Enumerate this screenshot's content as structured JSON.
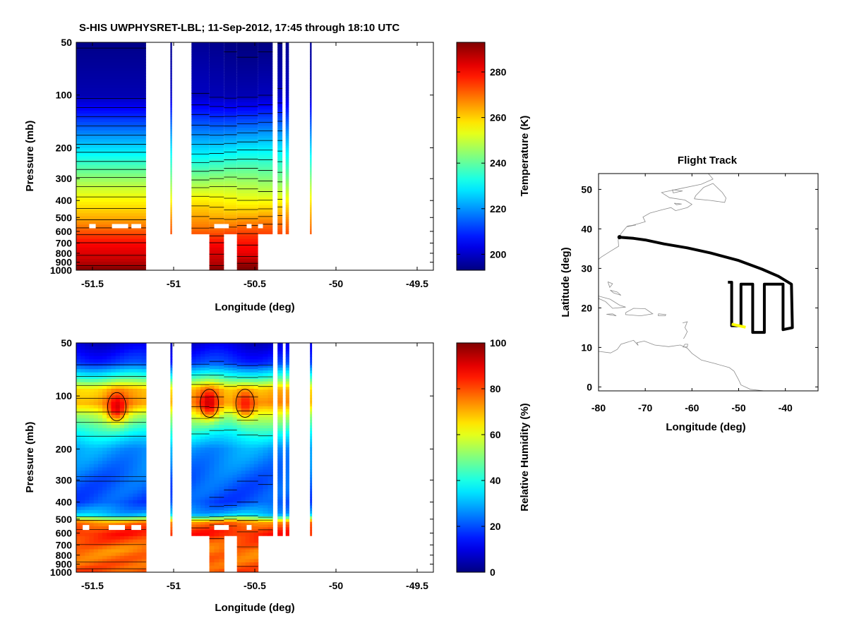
{
  "figure_title": "S-HIS UWPHYSRET-LBL;   11-Sep-2012, 17:45 through 18:10 UTC",
  "colors": {
    "colormap": "jet",
    "contour": "#000000",
    "track": "#000000",
    "track_current": "#ffff00",
    "coastline": "#8c8c8c"
  },
  "chart_data": [
    {
      "id": "temperature",
      "type": "heatmap",
      "xlabel": "Longitude (deg)",
      "ylabel": "Pressure (mb)",
      "xlim": [
        -51.6,
        -49.4
      ],
      "xticks": [
        -51.5,
        -51,
        -50.5,
        -50,
        -49.5
      ],
      "xtick_labels": [
        "-51.5",
        "-51",
        "-50.5",
        "-50",
        "-49.5"
      ],
      "ylim": [
        50,
        1000
      ],
      "yscale": "log",
      "yticks": [
        50,
        100,
        200,
        300,
        400,
        500,
        600,
        700,
        800,
        900,
        1000
      ],
      "ytick_labels": [
        "50",
        "100",
        "200",
        "300",
        "400",
        "500",
        "600",
        "700",
        "800",
        "900",
        "1000"
      ],
      "colorbar_label": "Temperature (K)",
      "clim": [
        193,
        293
      ],
      "colorbar_ticks": [
        200,
        220,
        240,
        260,
        280
      ],
      "colorbar_tick_labels": [
        "200",
        "220",
        "240",
        "260",
        "280"
      ],
      "surface_temperature": 293,
      "tropopause_temperature": 199,
      "upper_temperature": 194,
      "contour_interval": 5,
      "cloud_top_pressure": 560,
      "data_columns": [
        {
          "lon_start": -51.6,
          "lon_end": -51.17,
          "bottom_p": 1000
        },
        {
          "lon_start": -51.02,
          "lon_end": -51.01,
          "bottom_p": 620
        },
        {
          "lon_start": -50.89,
          "lon_end": -50.78,
          "bottom_p": 620
        },
        {
          "lon_start": -50.78,
          "lon_end": -50.69,
          "bottom_p": 1000
        },
        {
          "lon_start": -50.69,
          "lon_end": -50.61,
          "bottom_p": 620
        },
        {
          "lon_start": -50.61,
          "lon_end": -50.48,
          "bottom_p": 1000
        },
        {
          "lon_start": -50.48,
          "lon_end": -50.39,
          "bottom_p": 620
        },
        {
          "lon_start": -50.36,
          "lon_end": -50.33,
          "bottom_p": 620
        },
        {
          "lon_start": -50.31,
          "lon_end": -50.29,
          "bottom_p": 620
        },
        {
          "lon_start": -50.16,
          "lon_end": -50.15,
          "bottom_p": 620
        }
      ]
    },
    {
      "id": "humidity",
      "type": "heatmap",
      "xlabel": "Longitude (deg)",
      "ylabel": "Pressure (mb)",
      "xlim": [
        -51.6,
        -49.4
      ],
      "xticks": [
        -51.5,
        -51,
        -50.5,
        -50,
        -49.5
      ],
      "xtick_labels": [
        "-51.5",
        "-51",
        "-50.5",
        "-50",
        "-49.5"
      ],
      "ylim": [
        50,
        1000
      ],
      "yscale": "log",
      "yticks": [
        50,
        100,
        200,
        300,
        400,
        500,
        600,
        700,
        800,
        900,
        1000
      ],
      "ytick_labels": [
        "50",
        "100",
        "200",
        "300",
        "400",
        "500",
        "600",
        "700",
        "800",
        "900",
        "1000"
      ],
      "colorbar_label": "Relative Humidity (%)",
      "clim": [
        0,
        100
      ],
      "colorbar_ticks": [
        0,
        20,
        40,
        60,
        80,
        100
      ],
      "colorbar_tick_labels": [
        "0",
        "20",
        "40",
        "60",
        "80",
        "100"
      ],
      "profile": [
        {
          "p": 50,
          "rh": 8
        },
        {
          "p": 65,
          "rh": 18
        },
        {
          "p": 80,
          "rh": 45
        },
        {
          "p": 92,
          "rh": 68
        },
        {
          "p": 110,
          "rh": 72
        },
        {
          "p": 130,
          "rh": 55
        },
        {
          "p": 160,
          "rh": 40
        },
        {
          "p": 200,
          "rh": 28
        },
        {
          "p": 300,
          "rh": 22
        },
        {
          "p": 400,
          "rh": 20
        },
        {
          "p": 470,
          "rh": 30
        },
        {
          "p": 520,
          "rh": 75
        },
        {
          "p": 600,
          "rh": 85
        },
        {
          "p": 750,
          "rh": 75
        },
        {
          "p": 900,
          "rh": 78
        },
        {
          "p": 1000,
          "rh": 80
        }
      ],
      "moist_peaks": [
        {
          "lon": -51.35,
          "p": 115,
          "rh": 88
        },
        {
          "lon": -50.78,
          "p": 110,
          "rh": 90
        },
        {
          "lon": -50.56,
          "p": 110,
          "rh": 88
        }
      ],
      "contour_levels": [
        20,
        40,
        60,
        80
      ]
    },
    {
      "id": "flight_track",
      "type": "scatter",
      "title": "Flight Track",
      "xlabel": "Longitude (deg)",
      "ylabel": "Latitude (deg)",
      "xlim": [
        -80,
        -33
      ],
      "ylim": [
        -1,
        54
      ],
      "xticks": [
        -80,
        -70,
        -60,
        -50,
        -40
      ],
      "xtick_labels": [
        "-80",
        "-70",
        "-60",
        "-50",
        "-40"
      ],
      "yticks": [
        0,
        10,
        20,
        30,
        40,
        50
      ],
      "ytick_labels": [
        "0",
        "10",
        "20",
        "30",
        "40",
        "50"
      ],
      "track": [
        [
          -75.5,
          37.9
        ],
        [
          -72.5,
          37.6
        ],
        [
          -70,
          37.2
        ],
        [
          -66,
          36.2
        ],
        [
          -61,
          35.2
        ],
        [
          -56,
          33.9
        ],
        [
          -50,
          32.0
        ],
        [
          -45,
          29.8
        ],
        [
          -41.5,
          28.0
        ],
        [
          -38.7,
          26.0
        ],
        [
          -38.5,
          15.0
        ],
        [
          -40.5,
          14.5
        ],
        [
          -40.5,
          26.0
        ],
        [
          -42.5,
          26.0
        ],
        [
          -44.5,
          26.0
        ],
        [
          -44.5,
          13.8
        ],
        [
          -47.0,
          13.8
        ],
        [
          -47.0,
          26.0
        ],
        [
          -49.5,
          26.0
        ],
        [
          -49.5,
          15.5
        ],
        [
          -51.5,
          15.5
        ],
        [
          -51.5,
          26.5
        ],
        [
          -52.3,
          26.5
        ]
      ],
      "current_segment": [
        [
          -51.5,
          15.9
        ],
        [
          -48.5,
          15.1
        ]
      ],
      "coastlines": [
        [
          [
            -80,
            25.2
          ],
          [
            -80.5,
            27.5
          ],
          [
            -80.6,
            29.5
          ],
          [
            -81.2,
            31
          ],
          [
            -79.5,
            32.8
          ],
          [
            -77.5,
            34.3
          ],
          [
            -75.7,
            35.6
          ],
          [
            -75.8,
            37.2
          ],
          [
            -75.2,
            38.8
          ],
          [
            -74.0,
            40.5
          ],
          [
            -71.5,
            41.3
          ],
          [
            -70.0,
            41.8
          ],
          [
            -70.5,
            43.0
          ],
          [
            -69.0,
            44.0
          ],
          [
            -66.5,
            44.8
          ],
          [
            -64.5,
            45.4
          ],
          [
            -63.5,
            44.6
          ],
          [
            -61.0,
            45.4
          ],
          [
            -60.0,
            46.2
          ],
          [
            -61.5,
            47.3
          ],
          [
            -64.8,
            47.9
          ],
          [
            -66.5,
            49.2
          ],
          [
            -62.5,
            50.2
          ],
          [
            -58.0,
            51.3
          ],
          [
            -55.5,
            52.6
          ],
          [
            -56.5,
            54.0
          ]
        ],
        [
          [
            -59.5,
            47.6
          ],
          [
            -56.0,
            47.2
          ],
          [
            -53.0,
            46.7
          ],
          [
            -52.7,
            47.8
          ],
          [
            -53.5,
            49.2
          ],
          [
            -55.5,
            51.5
          ],
          [
            -57.5,
            50.5
          ],
          [
            -59.2,
            48.4
          ],
          [
            -59.5,
            47.6
          ]
        ],
        [
          [
            -64.2,
            49.9
          ],
          [
            -62.0,
            49.6
          ],
          [
            -64.0,
            49.1
          ],
          [
            -64.2,
            49.9
          ]
        ],
        [
          [
            -63.8,
            46.5
          ],
          [
            -62.2,
            46.3
          ],
          [
            -63.3,
            46.1
          ],
          [
            -63.8,
            46.5
          ]
        ],
        [
          [
            -73.9,
            40.7
          ],
          [
            -72.0,
            41.0
          ],
          [
            -73.6,
            40.6
          ],
          [
            -73.9,
            40.7
          ]
        ],
        [
          [
            -80.0,
            23.0
          ],
          [
            -77.5,
            22.2
          ],
          [
            -75.5,
            20.7
          ],
          [
            -74.2,
            20.2
          ],
          [
            -77.0,
            19.9
          ],
          [
            -78.5,
            21.6
          ],
          [
            -80.0,
            22.4
          ]
        ],
        [
          [
            -78.3,
            18.4
          ],
          [
            -76.2,
            18.0
          ],
          [
            -77.0,
            18.5
          ],
          [
            -78.3,
            18.4
          ]
        ],
        [
          [
            -74.2,
            18.8
          ],
          [
            -72.5,
            19.9
          ],
          [
            -70.0,
            19.8
          ],
          [
            -68.4,
            18.5
          ],
          [
            -71.0,
            18.0
          ],
          [
            -74.2,
            18.3
          ],
          [
            -74.2,
            18.8
          ]
        ],
        [
          [
            -67.2,
            18.5
          ],
          [
            -65.6,
            18.3
          ],
          [
            -65.7,
            18.0
          ],
          [
            -67.2,
            18.0
          ],
          [
            -67.2,
            18.5
          ]
        ],
        [
          [
            -78.0,
            26.6
          ],
          [
            -77.0,
            26.1
          ],
          [
            -77.6,
            25.2
          ],
          [
            -78.0,
            26.6
          ]
        ],
        [
          [
            -77.5,
            24.5
          ],
          [
            -76.0,
            24.0
          ],
          [
            -75.2,
            23.2
          ],
          [
            -76.8,
            23.8
          ],
          [
            -77.5,
            24.5
          ]
        ],
        [
          [
            -80,
            9.0
          ],
          [
            -77.4,
            8.6
          ],
          [
            -76.0,
            9.5
          ],
          [
            -75.2,
            10.8
          ],
          [
            -72.5,
            11.8
          ],
          [
            -71.5,
            10.5
          ],
          [
            -71.8,
            11.2
          ],
          [
            -70.2,
            11.6
          ],
          [
            -68.0,
            10.6
          ],
          [
            -65.0,
            10.2
          ],
          [
            -62.5,
            10.6
          ],
          [
            -61.0,
            9.8
          ],
          [
            -60.0,
            8.5
          ],
          [
            -58.0,
            6.8
          ],
          [
            -55.0,
            5.9
          ],
          [
            -52.0,
            4.9
          ],
          [
            -51.0,
            4.0
          ],
          [
            -50.0,
            1.8
          ],
          [
            -49.5,
            0.5
          ],
          [
            -47.5,
            -0.6
          ],
          [
            -44.5,
            -1.0
          ]
        ],
        [
          [
            -61.5,
            10.8
          ],
          [
            -60.9,
            10.8
          ],
          [
            -61.0,
            10.1
          ],
          [
            -61.9,
            10.1
          ],
          [
            -61.5,
            10.8
          ]
        ],
        [
          [
            -62.0,
            16.2
          ],
          [
            -61.0,
            16.5
          ],
          [
            -61.5,
            15.0
          ],
          [
            -61.0,
            14.0
          ],
          [
            -61.4,
            13.0
          ],
          [
            -61.8,
            12.2
          ]
        ]
      ]
    }
  ]
}
